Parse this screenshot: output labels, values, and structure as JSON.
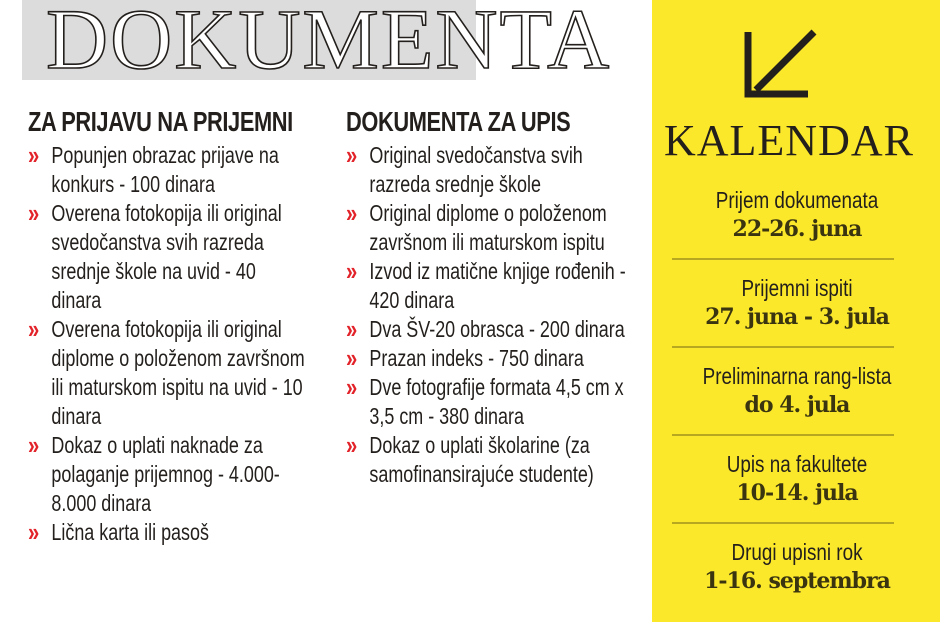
{
  "title": "DOKUMENTA",
  "left": {
    "heading": "ZA PRIJAVU NA PRIJEMNI",
    "items": [
      "Popunjen obrazac prijave na konkurs - 100 dinara",
      "Overena fotokopija ili original svedočanstva svih razreda srednje škole na uvid - 40 dinara",
      "Overena fotokopija ili original diplome o položenom završnom ili maturskom ispitu na uvid - 10 dinara",
      "Dokaz o uplati naknade za polaganje prijemnog - 4.000-8.000 dinara",
      "Lična karta ili pasoš"
    ]
  },
  "middle": {
    "heading": "DOKUMENTA ZA UPIS",
    "items": [
      "Original svedočanstva svih razreda srednje škole",
      "Original diplome o položenom završnom ili maturskom ispitu",
      "Izvod iz matične knjige rođenih - 420 dinara",
      "Dva ŠV-20 obrasca - 200 dinara",
      "Prazan indeks - 750 dinara",
      "Dve fotografije formata 4,5 cm x 3,5 cm - 380 dinara",
      "Dokaz o uplati školarine (za samofinansirajuće studente)"
    ]
  },
  "bullet": "»",
  "calendar": {
    "title": "KALENDAR",
    "icon": "arrow-down-left-icon",
    "events": [
      {
        "label": "Prijem dokumenata",
        "date": "22-26. juna"
      },
      {
        "label": "Prijemni ispiti",
        "date": "27. juna - 3. jula"
      },
      {
        "label": "Preliminarna rang-lista",
        "date": "do 4. jula"
      },
      {
        "label": "Upis na fakultete",
        "date": "10-14. jula"
      },
      {
        "label": "Drugi upisni rok",
        "date": "1-16. septembra"
      }
    ]
  },
  "colors": {
    "panel": "#fce82a",
    "bullet": "#e2232a",
    "title_bg": "#dcdcdc"
  }
}
